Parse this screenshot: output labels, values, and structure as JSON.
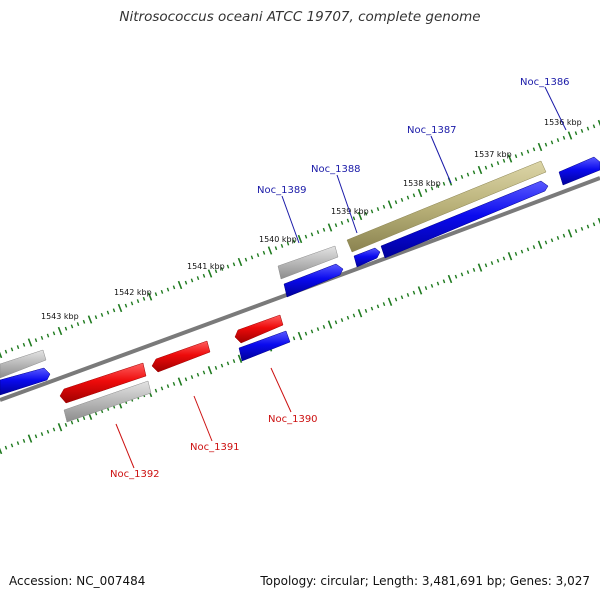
{
  "title": "Nitrosococcus oceani ATCC 19707, complete genome",
  "footer": {
    "accession": "Accession: NC_007484",
    "summary": "Topology: circular; Length: 3,481,691 bp; Genes: 3,027"
  },
  "colors": {
    "backbone": "#7a7a7a",
    "tick": "#1f7a1f",
    "forward_label": "#1a1aa8",
    "reverse_label": "#cc1010",
    "blue_gene": "#0a0aee",
    "red_gene": "#ee0b0b",
    "gray_gene": "#b8b8b8",
    "olive_gene": "#b9b179"
  },
  "kbp_labels": [
    "1536 kbp",
    "1537 kbp",
    "1538 kbp",
    "1539 kbp",
    "1540 kbp",
    "1541 kbp",
    "1542 kbp",
    "1543 kbp"
  ],
  "genes": [
    {
      "label": "Noc_1386",
      "strand": "forward",
      "color": "blue"
    },
    {
      "label": "Noc_1387",
      "strand": "forward",
      "color": "blue"
    },
    {
      "label": "Noc_1388",
      "strand": "forward",
      "color": "blue"
    },
    {
      "label": "Noc_1389",
      "strand": "forward",
      "color": "blue"
    },
    {
      "label": "Noc_1390",
      "strand": "reverse",
      "color": "blue"
    },
    {
      "label": "Noc_1391",
      "strand": "reverse",
      "color": "red"
    },
    {
      "label": "Noc_1392",
      "strand": "reverse",
      "color": "red"
    }
  ],
  "unlabeled_features": [
    {
      "color": "olive",
      "track": "outer"
    },
    {
      "color": "gray",
      "track": "outer"
    },
    {
      "color": "gray",
      "track": "outer"
    },
    {
      "color": "gray",
      "track": "inner"
    },
    {
      "color": "red",
      "track": "inner"
    },
    {
      "color": "blue",
      "track": "outer"
    }
  ]
}
